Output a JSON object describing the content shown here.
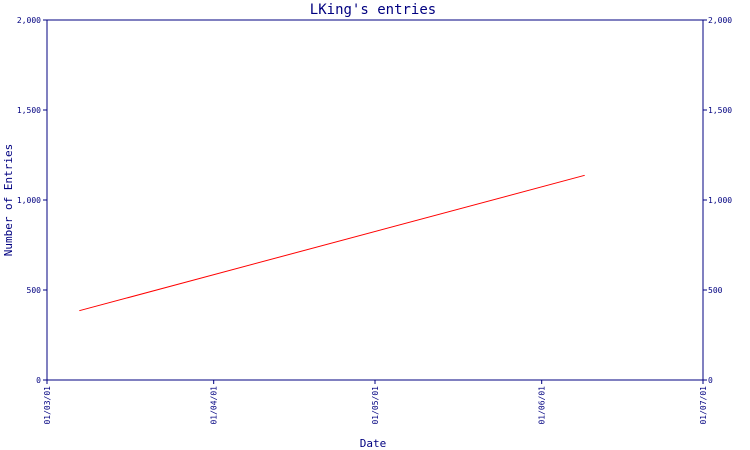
{
  "colors": {
    "axis": "#000080",
    "line": "#ff0000",
    "background": "#ffffff"
  },
  "chart_data": {
    "type": "line",
    "title": "LKing's entries",
    "xlabel": "Date",
    "ylabel": "Number of Entries",
    "x_ticks": [
      "01/03/01",
      "01/04/01",
      "01/05/01",
      "01/06/01",
      "01/07/01"
    ],
    "x_range": [
      "2001-03-01",
      "2001-07-01"
    ],
    "y_ticks": [
      0,
      500,
      1000,
      1500,
      2000
    ],
    "y_tick_labels": [
      "0",
      "500",
      "1,000",
      "1,500",
      "2,000"
    ],
    "ylim": [
      0,
      2000
    ],
    "right_axis_ticks": [
      0,
      500,
      1000,
      1500,
      2000
    ],
    "right_axis_tick_labels": [
      "0",
      "500",
      "1,000",
      "1,500",
      "2,000"
    ],
    "grid": false,
    "series": [
      {
        "x": [
          "2001-03-07",
          "2001-06-09"
        ],
        "values": [
          385,
          1137
        ],
        "color": "#ff0000"
      }
    ]
  }
}
